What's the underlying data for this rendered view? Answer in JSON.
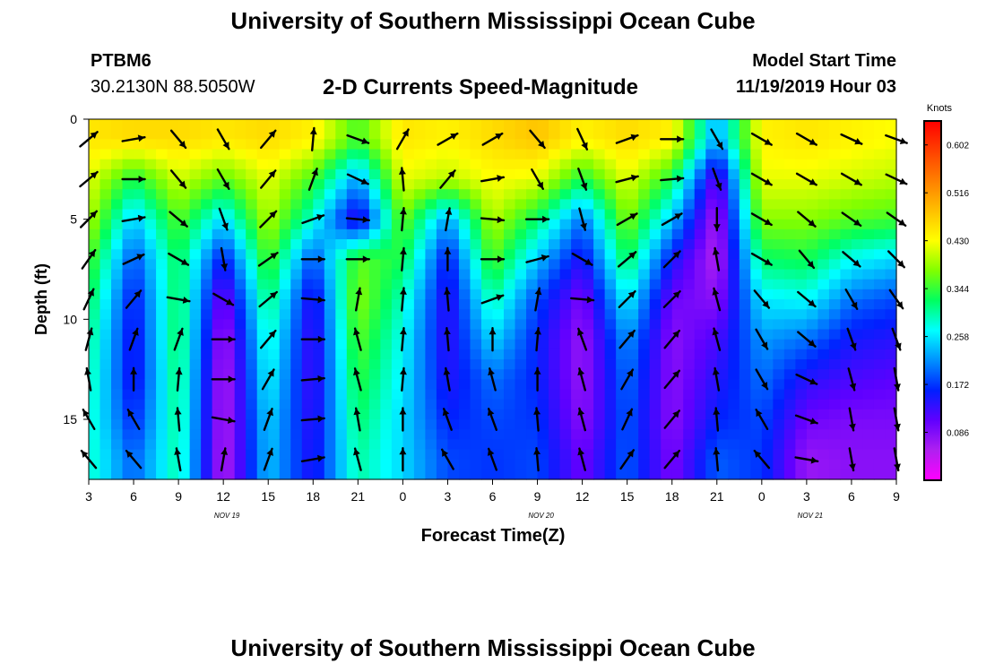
{
  "header": {
    "title": "University of Southern Mississippi Ocean Cube",
    "station_id": "PTBM6",
    "station_coords": "30.2130N 88.5050W",
    "plot_title": "2-D Currents Speed-Magnitude",
    "model_start_label": "Model Start Time",
    "model_start_value": "11/19/2019 Hour 03"
  },
  "footer": {
    "title": "University of Southern Mississippi Ocean Cube"
  },
  "colors": {
    "scale": [
      "#ff00ff",
      "#b020f0",
      "#6000ff",
      "#0020ff",
      "#0090ff",
      "#00ffff",
      "#00ff60",
      "#80ff00",
      "#ffff00",
      "#ffc000",
      "#ff8000",
      "#ff4000",
      "#ff0000"
    ]
  },
  "chart_data": {
    "type": "heatmap",
    "title": "2-D Currents Speed-Magnitude",
    "xlabel": "Forecast Time(Z)",
    "ylabel": "Depth (ft)",
    "x_ticks": [
      "3",
      "6",
      "9",
      "12",
      "15",
      "18",
      "21",
      "0",
      "3",
      "6",
      "9",
      "12",
      "15",
      "18",
      "21",
      "0",
      "3",
      "6",
      "9"
    ],
    "date_labels": [
      {
        "text": "NOV 19",
        "tick_index": 3
      },
      {
        "text": "NOV 20",
        "tick_index": 10
      },
      {
        "text": "NOV 21",
        "tick_index": 16
      }
    ],
    "y_ticks": [
      "0",
      "5",
      "10",
      "15"
    ],
    "ylim": [
      0,
      18
    ],
    "colorbar": {
      "title": "Knots",
      "labels": [
        "0.602",
        "0.516",
        "0.430",
        "0.344",
        "0.258",
        "0.172",
        "0.086"
      ],
      "range": [
        0,
        0.645
      ]
    },
    "depths_ft": [
      1,
      3,
      5,
      7,
      9,
      11,
      13,
      15,
      17
    ],
    "columns": [
      {
        "hour": "03",
        "speed": [
          0.45,
          0.42,
          0.4,
          0.36,
          0.33,
          0.31,
          0.3,
          0.29,
          0.29
        ],
        "dir": [
          50,
          50,
          45,
          35,
          25,
          15,
          350,
          330,
          320
        ]
      },
      {
        "hour": "06",
        "speed": [
          0.46,
          0.33,
          0.24,
          0.18,
          0.15,
          0.14,
          0.14,
          0.16,
          0.19
        ],
        "dir": [
          80,
          90,
          80,
          65,
          40,
          20,
          0,
          330,
          320
        ]
      },
      {
        "hour": "09",
        "speed": [
          0.46,
          0.41,
          0.36,
          0.33,
          0.33,
          0.33,
          0.32,
          0.31,
          0.3
        ],
        "dir": [
          140,
          140,
          130,
          120,
          100,
          20,
          5,
          355,
          350
        ]
      },
      {
        "hour": "12",
        "speed": [
          0.45,
          0.36,
          0.25,
          0.15,
          0.09,
          0.06,
          0.05,
          0.05,
          0.05
        ],
        "dir": [
          150,
          150,
          160,
          170,
          120,
          90,
          90,
          100,
          10
        ]
      },
      {
        "hour": "15",
        "speed": [
          0.46,
          0.42,
          0.4,
          0.36,
          0.32,
          0.29,
          0.27,
          0.25,
          0.24
        ],
        "dir": [
          40,
          40,
          45,
          55,
          50,
          40,
          30,
          20,
          20
        ]
      },
      {
        "hour": "18",
        "speed": [
          0.44,
          0.35,
          0.28,
          0.18,
          0.13,
          0.12,
          0.12,
          0.13,
          0.14
        ],
        "dir": [
          5,
          20,
          70,
          90,
          95,
          90,
          85,
          85,
          80
        ]
      },
      {
        "hour": "21",
        "speed": [
          0.35,
          0.22,
          0.12,
          0.36,
          0.38,
          0.36,
          0.34,
          0.32,
          0.3
        ],
        "dir": [
          110,
          115,
          95,
          90,
          10,
          345,
          345,
          350,
          345
        ]
      },
      {
        "hour": "00",
        "speed": [
          0.45,
          0.42,
          0.37,
          0.33,
          0.29,
          0.27,
          0.26,
          0.25,
          0.25
        ],
        "dir": [
          30,
          355,
          5,
          5,
          5,
          5,
          5,
          0,
          0
        ]
      },
      {
        "hour": "03",
        "speed": [
          0.44,
          0.4,
          0.22,
          0.15,
          0.13,
          0.13,
          0.14,
          0.16,
          0.18
        ],
        "dir": [
          60,
          40,
          10,
          0,
          355,
          355,
          350,
          340,
          330
        ]
      },
      {
        "hour": "06",
        "speed": [
          0.46,
          0.43,
          0.4,
          0.36,
          0.3,
          0.25,
          0.2,
          0.18,
          0.17
        ],
        "dir": [
          60,
          80,
          95,
          90,
          70,
          0,
          345,
          340,
          340
        ]
      },
      {
        "hour": "09",
        "speed": [
          0.48,
          0.42,
          0.32,
          0.24,
          0.18,
          0.16,
          0.16,
          0.17,
          0.18
        ],
        "dir": [
          140,
          150,
          90,
          75,
          10,
          5,
          0,
          355,
          355
        ]
      },
      {
        "hour": "12",
        "speed": [
          0.44,
          0.33,
          0.2,
          0.14,
          0.09,
          0.07,
          0.07,
          0.08,
          0.1
        ],
        "dir": [
          155,
          160,
          165,
          120,
          95,
          340,
          345,
          345,
          345
        ]
      },
      {
        "hour": "15",
        "speed": [
          0.46,
          0.42,
          0.38,
          0.33,
          0.27,
          0.22,
          0.2,
          0.19,
          0.19
        ],
        "dir": [
          70,
          75,
          60,
          50,
          45,
          40,
          30,
          25,
          35
        ]
      },
      {
        "hour": "18",
        "speed": [
          0.44,
          0.33,
          0.24,
          0.15,
          0.1,
          0.08,
          0.08,
          0.08,
          0.09
        ],
        "dir": [
          90,
          85,
          60,
          45,
          45,
          40,
          40,
          40,
          40
        ]
      },
      {
        "hour": "21",
        "speed": [
          0.22,
          0.1,
          0.06,
          0.05,
          0.08,
          0.12,
          0.14,
          0.16,
          0.19
        ],
        "dir": [
          150,
          160,
          180,
          350,
          345,
          345,
          350,
          355,
          355
        ]
      },
      {
        "hour": "00",
        "speed": [
          0.44,
          0.42,
          0.38,
          0.32,
          0.26,
          0.22,
          0.2,
          0.18,
          0.17
        ],
        "dir": [
          120,
          120,
          120,
          120,
          140,
          150,
          150,
          330,
          320
        ]
      },
      {
        "hour": "03",
        "speed": [
          0.45,
          0.42,
          0.38,
          0.33,
          0.27,
          0.2,
          0.14,
          0.1,
          0.07
        ],
        "dir": [
          120,
          120,
          130,
          140,
          130,
          130,
          115,
          110,
          100
        ]
      },
      {
        "hour": "06",
        "speed": [
          0.44,
          0.41,
          0.36,
          0.27,
          0.2,
          0.15,
          0.12,
          0.09,
          0.08
        ],
        "dir": [
          115,
          120,
          125,
          130,
          150,
          160,
          165,
          170,
          170
        ]
      },
      {
        "hour": "09",
        "speed": [
          0.43,
          0.4,
          0.35,
          0.25,
          0.18,
          0.14,
          0.11,
          0.09,
          0.08
        ],
        "dir": [
          110,
          115,
          125,
          135,
          145,
          160,
          170,
          170,
          170
        ]
      }
    ]
  }
}
